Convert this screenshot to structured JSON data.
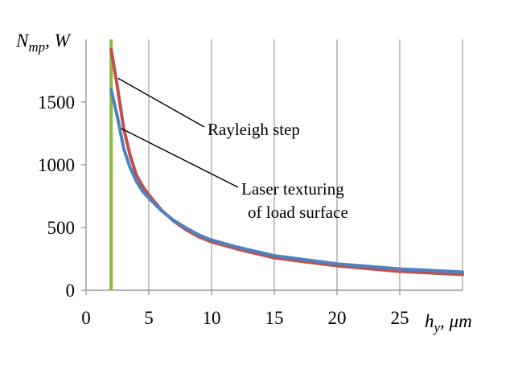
{
  "chart_data": {
    "type": "line",
    "title": "",
    "xlabel": "h_y, μm",
    "ylabel": "N_mp, W",
    "xlim": [
      0,
      30
    ],
    "ylim": [
      0,
      2000
    ],
    "x_ticks": [
      0,
      5,
      10,
      15,
      20,
      25
    ],
    "y_ticks": [
      0,
      500,
      1000,
      1500
    ],
    "grid": {
      "vertical": true,
      "horizontal": false
    },
    "vertical_marker": {
      "x": 2,
      "color": "#8DB84A"
    },
    "series": [
      {
        "color": "#C0504D",
        "x": [
          2,
          2.5,
          3,
          3.5,
          4,
          4.5,
          5,
          6,
          7,
          8,
          9,
          10,
          12,
          15,
          20,
          25,
          30
        ],
        "y": [
          1920,
          1620,
          1290,
          1080,
          920,
          830,
          760,
          640,
          550,
          480,
          425,
          385,
          330,
          258,
          195,
          150,
          125
        ]
      },
      {
        "color": "#4F81BD",
        "x": [
          2,
          2.5,
          3,
          3.5,
          4,
          4.5,
          5,
          6,
          7,
          8,
          9,
          10,
          12,
          15,
          20,
          25,
          30
        ],
        "y": [
          1600,
          1380,
          1130,
          980,
          870,
          790,
          735,
          635,
          555,
          495,
          440,
          400,
          345,
          275,
          210,
          170,
          145
        ]
      }
    ],
    "annotations": [
      {
        "text": "Rayleigh step",
        "series_index": 0,
        "anchor_x": 2.55,
        "anchor_y": 1690
      },
      {
        "text": "Laser texturing",
        "text2": "of load surface",
        "series_index": 1,
        "anchor_x": 2.8,
        "anchor_y": 1290
      }
    ]
  },
  "axis_text": {
    "y_main": "N",
    "y_sub": "mp",
    "y_unit": ", W",
    "x_main": "h",
    "x_sub": "y",
    "x_unit": ", μm"
  }
}
